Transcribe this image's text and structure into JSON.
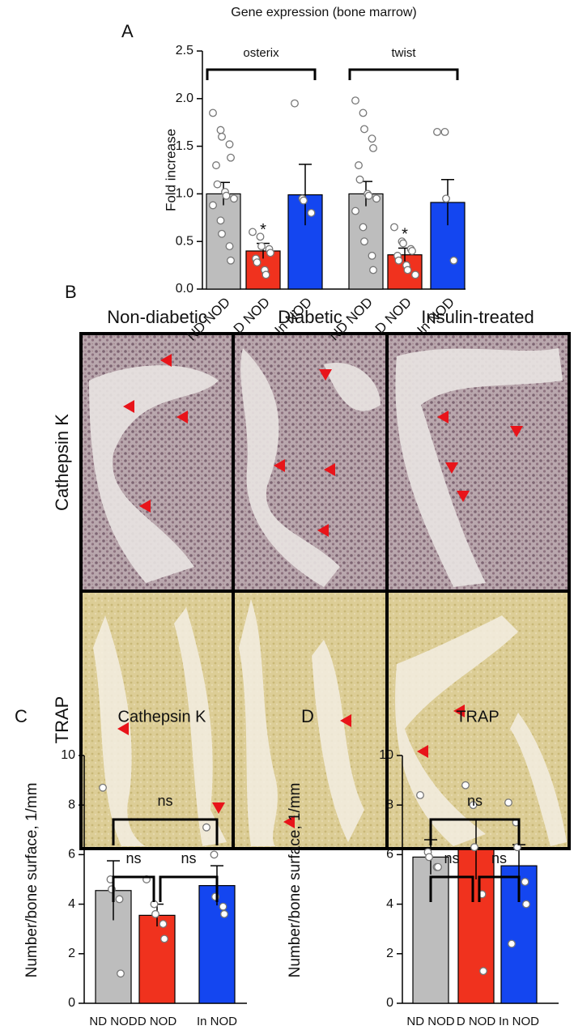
{
  "chart_data": [
    {
      "type": "bar",
      "panel_label": "A",
      "title": "Gene expression (bone marrow)",
      "y_label": "Fold increase",
      "categories": [
        "ND NOD",
        "D NOD",
        "In NOD",
        "ND NOD",
        "D NOD",
        "In NOD"
      ],
      "values": [
        1.0,
        0.4,
        0.99,
        1.0,
        0.36,
        0.91
      ],
      "errors": [
        0.12,
        0.08,
        0.32,
        0.13,
        0.07,
        0.24
      ],
      "colors": [
        "#bdbdbd",
        "#f0321e",
        "#1446f0",
        "#bdbdbd",
        "#f0321e",
        "#1446f0"
      ],
      "points": [
        [
          1.85,
          1.67,
          1.6,
          1.52,
          1.38,
          1.3,
          1.1,
          1.02,
          0.98,
          0.95,
          0.88,
          0.72,
          0.58,
          0.45,
          0.3
        ],
        [
          0.6,
          0.55,
          0.45,
          0.42,
          0.38,
          0.32,
          0.28,
          0.2,
          0.15
        ],
        [
          1.95,
          0.95,
          0.93,
          0.8
        ],
        [
          1.98,
          1.85,
          1.68,
          1.58,
          1.48,
          1.3,
          1.15,
          1.0,
          0.98,
          0.95,
          0.82,
          0.65,
          0.5,
          0.35,
          0.2
        ],
        [
          0.65,
          0.5,
          0.48,
          0.42,
          0.4,
          0.35,
          0.3,
          0.25,
          0.2,
          0.15
        ],
        [
          1.65,
          1.65,
          0.95,
          0.3
        ]
      ],
      "ylim": [
        0,
        2.5
      ],
      "yticks": [
        {
          "value": 0,
          "label": "0.0"
        },
        {
          "value": 0.5,
          "label": "0.5"
        },
        {
          "value": 1,
          "label": "1.0"
        },
        {
          "value": 1.5,
          "label": "1.5"
        },
        {
          "value": 2,
          "label": "2.0"
        },
        {
          "value": 2.5,
          "label": "2.5"
        }
      ],
      "brackets": [
        {
          "label": "osterix",
          "from": 0,
          "to": 2
        },
        {
          "label": "twist",
          "from": 3,
          "to": 5
        }
      ],
      "annotations": [
        {
          "text": "*",
          "category": 1
        },
        {
          "text": "*",
          "category": 4
        }
      ]
    },
    {
      "type": "bar",
      "panel_label": "C",
      "title": "Cathepsin K",
      "y_label": "Number/bone surface, 1/mm",
      "categories": [
        "ND NOD",
        "D NOD",
        "In NOD"
      ],
      "values": [
        4.55,
        3.55,
        4.75
      ],
      "errors": [
        1.2,
        0.45,
        0.8
      ],
      "colors": [
        "#bdbdbd",
        "#f0321e",
        "#1446f0"
      ],
      "points": [
        [
          8.7,
          5.0,
          4.6,
          4.2,
          1.2
        ],
        [
          5.0,
          4.0,
          3.6,
          3.2,
          2.6
        ],
        [
          7.1,
          6.0,
          4.3,
          3.9,
          3.6
        ]
      ],
      "ylim": [
        0,
        10
      ],
      "yticks": [
        0,
        2,
        4,
        6,
        8,
        10
      ],
      "brackets": [
        {
          "label": "ns",
          "from": 0,
          "to": 1
        },
        {
          "label": "ns",
          "from": 1,
          "to": 2
        },
        {
          "label": "ns",
          "from": 0,
          "to": 2
        }
      ]
    },
    {
      "type": "bar",
      "panel_label": "D",
      "title": "TRAP",
      "y_label": "Number/bone surface, 1/mm",
      "categories": [
        "ND NOD",
        "D NOD",
        "In NOD"
      ],
      "values": [
        5.9,
        6.2,
        5.55
      ],
      "errors": [
        0.7,
        1.2,
        0.85
      ],
      "colors": [
        "#bdbdbd",
        "#f0321e",
        "#1446f0"
      ],
      "points": [
        [
          8.4,
          6.1,
          5.9,
          5.5,
          5.5
        ],
        [
          8.8,
          8.0,
          6.3,
          4.4,
          1.3
        ],
        [
          8.1,
          7.3,
          6.3,
          4.9,
          4.0,
          2.4
        ]
      ],
      "ylim": [
        0,
        10
      ],
      "yticks": [
        0,
        2,
        4,
        6,
        8,
        10
      ],
      "brackets": [
        {
          "label": "ns",
          "from": 0,
          "to": 1
        },
        {
          "label": "ns",
          "from": 1,
          "to": 2
        },
        {
          "label": "ns",
          "from": 0,
          "to": 2
        }
      ]
    }
  ],
  "image_panel": {
    "panel_label": "B",
    "columns": [
      "Non-diabetic",
      "Diabetic",
      "Insulin-treated"
    ],
    "rows": [
      "Cathepsin K",
      "TRAP"
    ]
  }
}
